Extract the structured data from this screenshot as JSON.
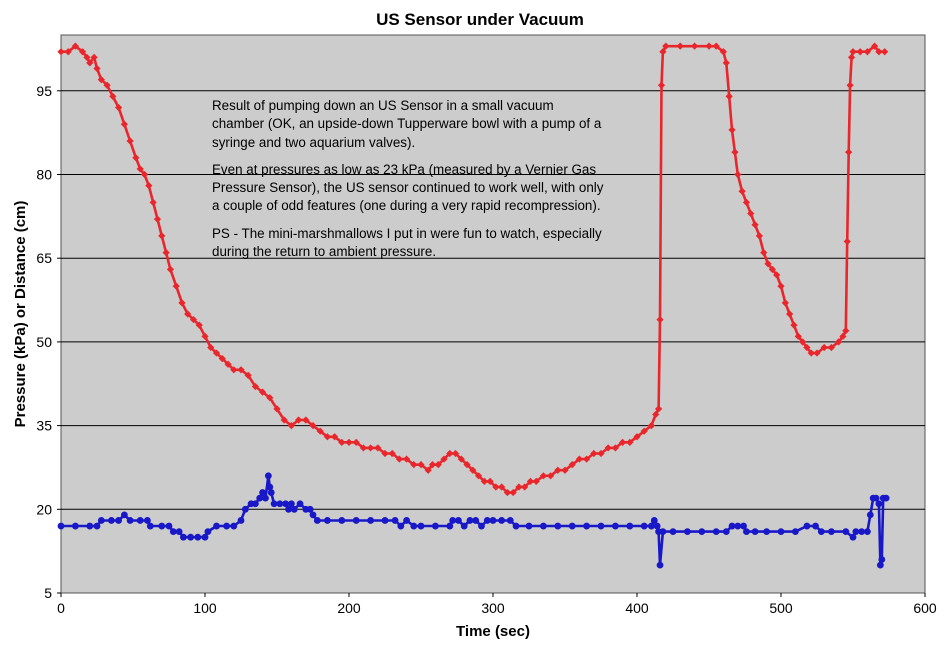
{
  "chart_data": {
    "type": "scatter",
    "title": "US Sensor under Vacuum",
    "xlabel": "Time (sec)",
    "ylabel": "Pressure (kPa) or Distance (cm)",
    "xlim": [
      0,
      600
    ],
    "ylim": [
      5,
      105
    ],
    "xticks": [
      0,
      100,
      200,
      300,
      400,
      500,
      600
    ],
    "yticks": [
      5,
      20,
      35,
      50,
      65,
      80,
      95
    ],
    "grid": "horizontal",
    "plot_background": "#cccccc",
    "annotation": [
      "Result of pumping down an US Sensor in a small vacuum chamber (OK, an upside-down Tupperware bowl with a pump of a syringe and two aquarium valves).",
      "Even at pressures as low as 23 kPa  (measured by a Vernier Gas Pressure Sensor), the US sensor continued to work well, with only a couple of odd features (one during a very rapid recompression).",
      "PS - The mini-marshmallows I put in were fun to watch, especially during the return to ambient pressure."
    ],
    "series": [
      {
        "color": "#e8262b",
        "marker": "diamond",
        "points": [
          [
            0,
            102
          ],
          [
            5,
            102
          ],
          [
            10,
            103
          ],
          [
            15,
            102
          ],
          [
            18,
            101
          ],
          [
            20,
            100
          ],
          [
            23,
            101
          ],
          [
            25,
            99
          ],
          [
            28,
            97
          ],
          [
            32,
            96
          ],
          [
            36,
            94
          ],
          [
            40,
            92
          ],
          [
            44,
            89
          ],
          [
            48,
            86
          ],
          [
            52,
            83
          ],
          [
            55,
            81
          ],
          [
            58,
            80
          ],
          [
            61,
            78
          ],
          [
            64,
            75
          ],
          [
            67,
            72
          ],
          [
            70,
            69
          ],
          [
            73,
            66
          ],
          [
            76,
            63
          ],
          [
            80,
            60
          ],
          [
            84,
            57
          ],
          [
            88,
            55
          ],
          [
            92,
            54
          ],
          [
            96,
            53
          ],
          [
            100,
            51
          ],
          [
            104,
            49
          ],
          [
            108,
            48
          ],
          [
            112,
            47
          ],
          [
            116,
            46
          ],
          [
            120,
            45
          ],
          [
            125,
            45
          ],
          [
            130,
            44
          ],
          [
            135,
            42
          ],
          [
            140,
            41
          ],
          [
            145,
            40
          ],
          [
            150,
            38
          ],
          [
            155,
            36
          ],
          [
            160,
            35
          ],
          [
            165,
            36
          ],
          [
            170,
            36
          ],
          [
            175,
            35
          ],
          [
            180,
            34
          ],
          [
            185,
            33
          ],
          [
            190,
            33
          ],
          [
            195,
            32
          ],
          [
            200,
            32
          ],
          [
            205,
            32
          ],
          [
            210,
            31
          ],
          [
            215,
            31
          ],
          [
            220,
            31
          ],
          [
            225,
            30
          ],
          [
            230,
            30
          ],
          [
            235,
            29
          ],
          [
            240,
            29
          ],
          [
            245,
            28
          ],
          [
            250,
            28
          ],
          [
            255,
            27
          ],
          [
            258,
            28
          ],
          [
            262,
            28
          ],
          [
            266,
            29
          ],
          [
            270,
            30
          ],
          [
            274,
            30
          ],
          [
            278,
            29
          ],
          [
            282,
            28
          ],
          [
            286,
            27
          ],
          [
            290,
            26
          ],
          [
            294,
            25
          ],
          [
            298,
            25
          ],
          [
            302,
            24
          ],
          [
            306,
            24
          ],
          [
            310,
            23
          ],
          [
            314,
            23
          ],
          [
            318,
            24
          ],
          [
            322,
            24
          ],
          [
            326,
            25
          ],
          [
            330,
            25
          ],
          [
            335,
            26
          ],
          [
            340,
            26
          ],
          [
            345,
            27
          ],
          [
            350,
            27
          ],
          [
            355,
            28
          ],
          [
            360,
            29
          ],
          [
            365,
            29
          ],
          [
            370,
            30
          ],
          [
            375,
            30
          ],
          [
            380,
            31
          ],
          [
            385,
            31
          ],
          [
            390,
            32
          ],
          [
            395,
            32
          ],
          [
            400,
            33
          ],
          [
            405,
            34
          ],
          [
            410,
            35
          ],
          [
            413,
            37
          ],
          [
            415,
            38
          ],
          [
            416,
            54
          ],
          [
            417,
            96
          ],
          [
            418,
            102
          ],
          [
            420,
            103
          ],
          [
            430,
            103
          ],
          [
            440,
            103
          ],
          [
            450,
            103
          ],
          [
            455,
            103
          ],
          [
            460,
            102
          ],
          [
            462,
            100
          ],
          [
            464,
            94
          ],
          [
            466,
            88
          ],
          [
            468,
            84
          ],
          [
            470,
            80
          ],
          [
            473,
            77
          ],
          [
            476,
            75
          ],
          [
            479,
            73
          ],
          [
            482,
            71
          ],
          [
            485,
            69
          ],
          [
            488,
            66
          ],
          [
            491,
            64
          ],
          [
            494,
            63
          ],
          [
            497,
            62
          ],
          [
            500,
            60
          ],
          [
            503,
            57
          ],
          [
            506,
            55
          ],
          [
            509,
            53
          ],
          [
            512,
            51
          ],
          [
            515,
            50
          ],
          [
            518,
            49
          ],
          [
            521,
            48
          ],
          [
            525,
            48
          ],
          [
            530,
            49
          ],
          [
            535,
            49
          ],
          [
            540,
            50
          ],
          [
            543,
            51
          ],
          [
            545,
            52
          ],
          [
            546,
            68
          ],
          [
            547,
            84
          ],
          [
            548,
            96
          ],
          [
            549,
            101
          ],
          [
            550,
            102
          ],
          [
            555,
            102
          ],
          [
            560,
            102
          ],
          [
            565,
            103
          ],
          [
            568,
            102
          ],
          [
            572,
            102
          ]
        ]
      },
      {
        "color": "#1818c8",
        "marker": "circle",
        "points": [
          [
            0,
            17
          ],
          [
            10,
            17
          ],
          [
            20,
            17
          ],
          [
            25,
            17
          ],
          [
            28,
            18
          ],
          [
            35,
            18
          ],
          [
            40,
            18
          ],
          [
            44,
            19
          ],
          [
            48,
            18
          ],
          [
            55,
            18
          ],
          [
            60,
            18
          ],
          [
            62,
            17
          ],
          [
            70,
            17
          ],
          [
            75,
            17
          ],
          [
            78,
            16
          ],
          [
            82,
            16
          ],
          [
            85,
            15
          ],
          [
            90,
            15
          ],
          [
            95,
            15
          ],
          [
            100,
            15
          ],
          [
            102,
            16
          ],
          [
            108,
            17
          ],
          [
            115,
            17
          ],
          [
            120,
            17
          ],
          [
            125,
            18
          ],
          [
            128,
            20
          ],
          [
            132,
            21
          ],
          [
            135,
            21
          ],
          [
            138,
            22
          ],
          [
            140,
            23
          ],
          [
            142,
            22
          ],
          [
            144,
            26
          ],
          [
            145,
            24
          ],
          [
            146,
            23
          ],
          [
            148,
            21
          ],
          [
            152,
            21
          ],
          [
            156,
            21
          ],
          [
            158,
            20
          ],
          [
            160,
            21
          ],
          [
            162,
            20
          ],
          [
            166,
            21
          ],
          [
            170,
            20
          ],
          [
            173,
            20
          ],
          [
            175,
            19
          ],
          [
            178,
            18
          ],
          [
            185,
            18
          ],
          [
            195,
            18
          ],
          [
            205,
            18
          ],
          [
            215,
            18
          ],
          [
            225,
            18
          ],
          [
            232,
            18
          ],
          [
            236,
            17
          ],
          [
            240,
            18
          ],
          [
            245,
            17
          ],
          [
            250,
            17
          ],
          [
            260,
            17
          ],
          [
            270,
            17
          ],
          [
            272,
            18
          ],
          [
            276,
            18
          ],
          [
            280,
            17
          ],
          [
            284,
            18
          ],
          [
            288,
            18
          ],
          [
            292,
            17
          ],
          [
            296,
            18
          ],
          [
            300,
            18
          ],
          [
            306,
            18
          ],
          [
            312,
            18
          ],
          [
            316,
            17
          ],
          [
            325,
            17
          ],
          [
            335,
            17
          ],
          [
            345,
            17
          ],
          [
            355,
            17
          ],
          [
            365,
            17
          ],
          [
            375,
            17
          ],
          [
            385,
            17
          ],
          [
            395,
            17
          ],
          [
            405,
            17
          ],
          [
            410,
            17
          ],
          [
            412,
            18
          ],
          [
            414,
            17
          ],
          [
            415,
            16
          ],
          [
            416,
            10
          ],
          [
            418,
            16
          ],
          [
            425,
            16
          ],
          [
            435,
            16
          ],
          [
            445,
            16
          ],
          [
            455,
            16
          ],
          [
            462,
            16
          ],
          [
            466,
            17
          ],
          [
            470,
            17
          ],
          [
            474,
            17
          ],
          [
            476,
            16
          ],
          [
            482,
            16
          ],
          [
            490,
            16
          ],
          [
            500,
            16
          ],
          [
            510,
            16
          ],
          [
            518,
            17
          ],
          [
            524,
            17
          ],
          [
            528,
            16
          ],
          [
            535,
            16
          ],
          [
            545,
            16
          ],
          [
            550,
            15
          ],
          [
            552,
            16
          ],
          [
            556,
            16
          ],
          [
            560,
            16
          ],
          [
            562,
            19
          ],
          [
            564,
            22
          ],
          [
            566,
            22
          ],
          [
            568,
            21
          ],
          [
            569,
            10
          ],
          [
            570,
            11
          ],
          [
            571,
            22
          ],
          [
            573,
            22
          ]
        ]
      }
    ]
  }
}
